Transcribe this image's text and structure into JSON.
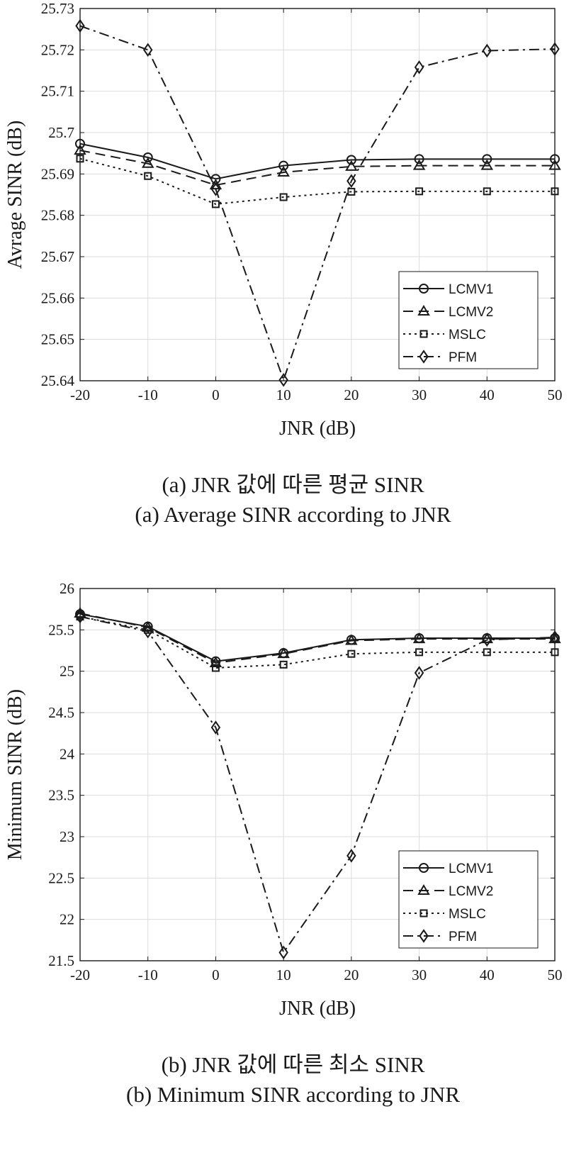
{
  "chart_data": [
    {
      "type": "line",
      "xlabel": "JNR (dB)",
      "ylabel": "Avrage SINR (dB)",
      "x": [
        -20,
        -10,
        0,
        10,
        20,
        30,
        40,
        50
      ],
      "xlim": [
        -20,
        50
      ],
      "ylim": [
        25.64,
        25.73
      ],
      "xticks": [
        "-20",
        "-10",
        "0",
        "10",
        "20",
        "30",
        "40",
        "50"
      ],
      "yticks": [
        "25.64",
        "25.65",
        "25.66",
        "25.67",
        "25.68",
        "25.69",
        "25.7",
        "25.71",
        "25.72",
        "25.73"
      ],
      "grid": true,
      "legend_position": "bottom-right",
      "series": [
        {
          "name": "LCMV1",
          "values": [
            25.6973,
            25.694,
            25.6888,
            25.692,
            25.6934,
            25.6936,
            25.6936,
            25.6936
          ]
        },
        {
          "name": "LCMV2",
          "values": [
            25.6957,
            25.6925,
            25.6873,
            25.6904,
            25.6918,
            25.692,
            25.692,
            25.692
          ]
        },
        {
          "name": "MSLC",
          "values": [
            25.6937,
            25.6895,
            25.6827,
            25.6844,
            25.6857,
            25.6858,
            25.6858,
            25.6858
          ]
        },
        {
          "name": "PFM",
          "values": [
            25.7258,
            25.72,
            25.6863,
            25.6402,
            25.6883,
            25.7158,
            25.7198,
            25.7202
          ]
        }
      ],
      "caption_ko": "(a) JNR 값에 따른 평균 SINR",
      "caption_en": "(a) Average SINR according to JNR"
    },
    {
      "type": "line",
      "xlabel": "JNR (dB)",
      "ylabel": "Minimum SINR (dB)",
      "x": [
        -20,
        -10,
        0,
        10,
        20,
        30,
        40,
        50
      ],
      "xlim": [
        -20,
        50
      ],
      "ylim": [
        21.5,
        26
      ],
      "xticks": [
        "-20",
        "-10",
        "0",
        "10",
        "20",
        "30",
        "40",
        "50"
      ],
      "yticks": [
        "21.5",
        "22",
        "22.5",
        "23",
        "23.5",
        "24",
        "24.5",
        "25",
        "25.5",
        "26"
      ],
      "grid": true,
      "legend_position": "bottom-right",
      "series": [
        {
          "name": "LCMV1",
          "values": [
            25.69,
            25.54,
            25.12,
            25.22,
            25.38,
            25.4,
            25.4,
            25.4
          ]
        },
        {
          "name": "LCMV2",
          "values": [
            25.7,
            25.53,
            25.1,
            25.21,
            25.37,
            25.39,
            25.39,
            25.39
          ]
        },
        {
          "name": "MSLC",
          "values": [
            25.66,
            25.5,
            25.04,
            25.08,
            25.21,
            25.23,
            25.23,
            25.23
          ]
        },
        {
          "name": "PFM",
          "values": [
            25.66,
            25.48,
            24.32,
            21.6,
            22.77,
            24.98,
            25.38,
            25.41
          ]
        }
      ],
      "caption_ko": "(b) JNR 값에 따른 최소 SINR",
      "caption_en": "(b) Minimum SINR according to JNR"
    }
  ],
  "colors": {
    "line": "#1a1a1a",
    "grid": "#dcdcdc",
    "background": "#ffffff"
  },
  "marker_icons": [
    "circle-marker",
    "triangle-marker",
    "square-marker",
    "diamond-marker"
  ]
}
